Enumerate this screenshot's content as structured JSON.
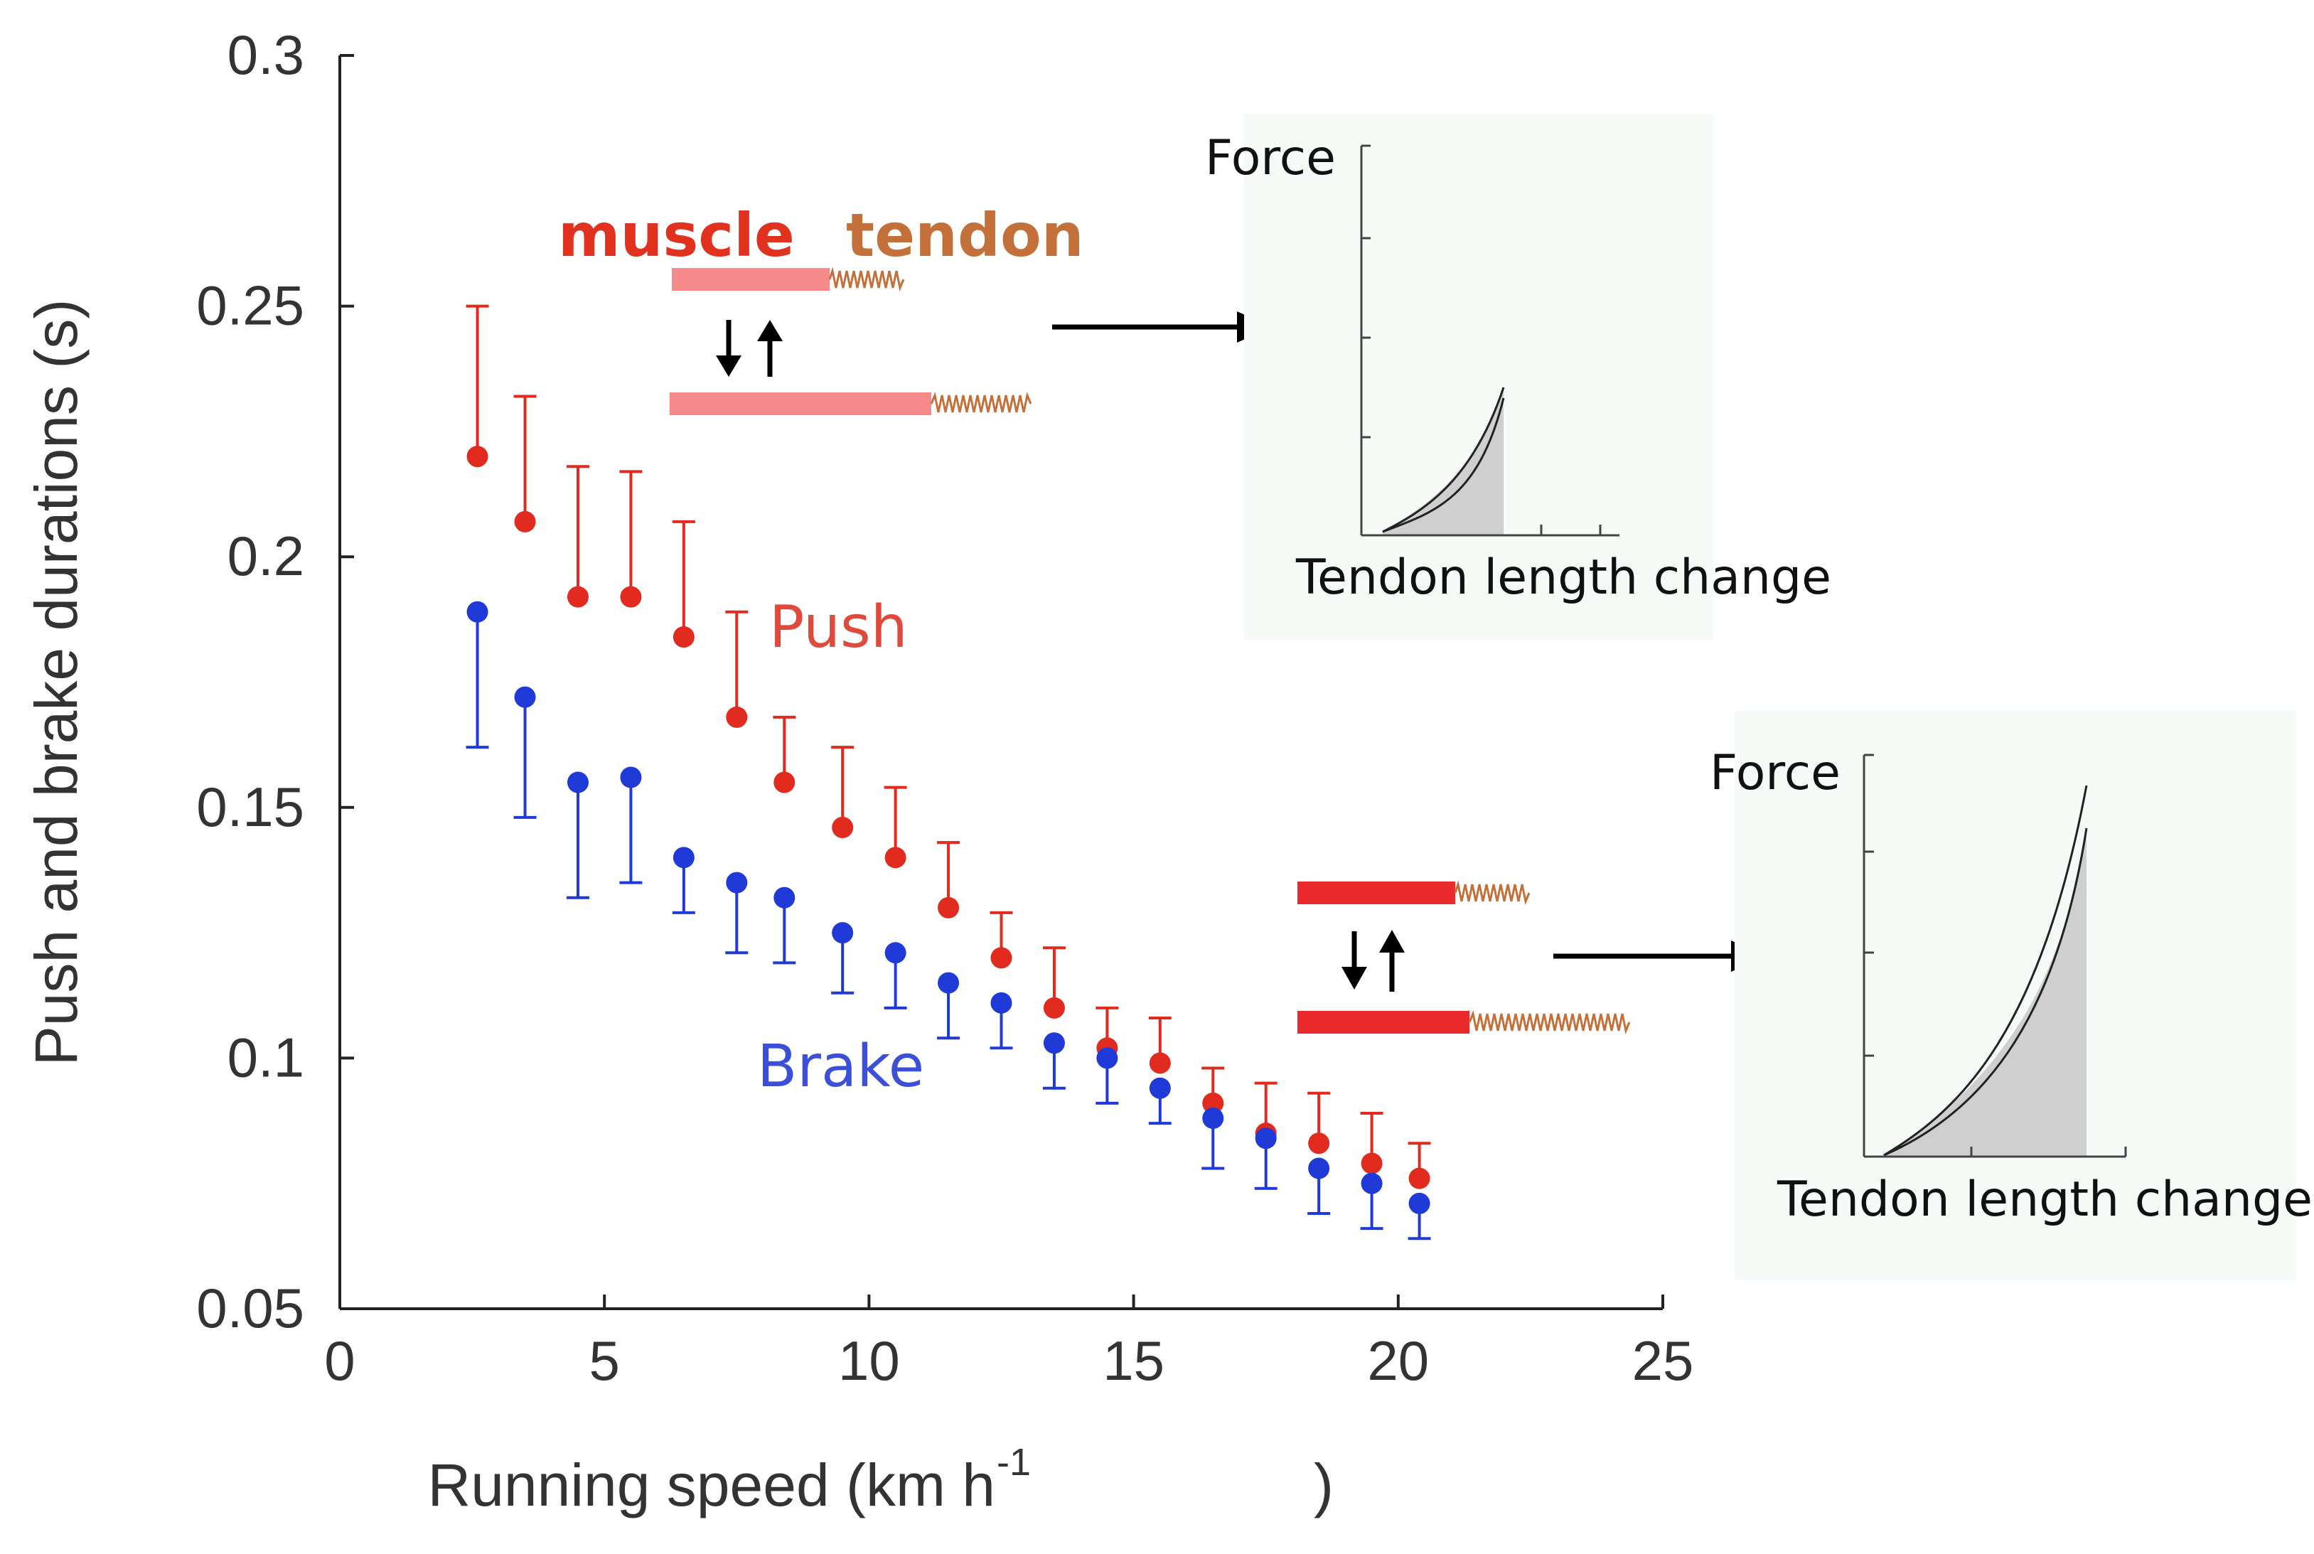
{
  "chart_data": {
    "type": "scatter",
    "xlabel": "Running speed (km h",
    "xlabel_sup": "-1",
    "xlabel_close": ")",
    "ylabel": "Push and brake durations (s)",
    "xlim": [
      0,
      25
    ],
    "ylim": [
      0.05,
      0.3
    ],
    "x_ticks": [
      0,
      5,
      10,
      15,
      20,
      25
    ],
    "x_tick_labels": [
      "0",
      "5",
      "10",
      "15",
      "20",
      "25"
    ],
    "y_ticks": [
      0.05,
      0.1,
      0.15,
      0.2,
      0.25,
      0.3
    ],
    "y_tick_labels": [
      "0.05",
      "0.1",
      "0.15",
      "0.2",
      "0.25",
      "0.3"
    ],
    "grid": false,
    "series": [
      {
        "name": "Push",
        "color": "#e02b1e",
        "error_direction": "up",
        "x": [
          2.6,
          3.5,
          4.5,
          5.5,
          6.5,
          7.5,
          8.4,
          9.5,
          10.5,
          11.5,
          12.5,
          13.5,
          14.5,
          15.5,
          16.5,
          17.5,
          18.5,
          19.5,
          20.4
        ],
        "y": [
          0.22,
          0.207,
          0.192,
          0.192,
          0.184,
          0.168,
          0.155,
          0.146,
          0.14,
          0.13,
          0.12,
          0.11,
          0.102,
          0.099,
          0.091,
          0.085,
          0.083,
          0.079,
          0.076
        ],
        "error": [
          0.03,
          0.025,
          0.026,
          0.025,
          0.023,
          0.021,
          0.013,
          0.016,
          0.014,
          0.013,
          0.009,
          0.012,
          0.008,
          0.009,
          0.007,
          0.01,
          0.01,
          0.01,
          0.007
        ]
      },
      {
        "name": "Brake",
        "color": "#1f3ad6",
        "error_direction": "down",
        "x": [
          2.6,
          3.5,
          4.5,
          5.5,
          6.5,
          7.5,
          8.4,
          9.5,
          10.5,
          11.5,
          12.5,
          13.5,
          14.5,
          15.5,
          16.5,
          17.5,
          18.5,
          19.5,
          20.4
        ],
        "y": [
          0.189,
          0.172,
          0.155,
          0.156,
          0.14,
          0.135,
          0.132,
          0.125,
          0.121,
          0.115,
          0.111,
          0.103,
          0.1,
          0.094,
          0.088,
          0.084,
          0.078,
          0.075,
          0.071
        ],
        "error": [
          0.027,
          0.024,
          0.023,
          0.021,
          0.011,
          0.014,
          0.013,
          0.012,
          0.011,
          0.011,
          0.009,
          0.009,
          0.009,
          0.007,
          0.01,
          0.01,
          0.009,
          0.009,
          0.007
        ]
      }
    ],
    "annotations": {
      "muscle": "muscle",
      "tendon": "tendon",
      "push_label": "Push",
      "brake_label": "Brake",
      "inset_top": {
        "ylabel": "Force",
        "xlabel": "Tendon length change"
      },
      "inset_bottom": {
        "ylabel": "Force",
        "xlabel": "Tendon length change"
      }
    }
  }
}
